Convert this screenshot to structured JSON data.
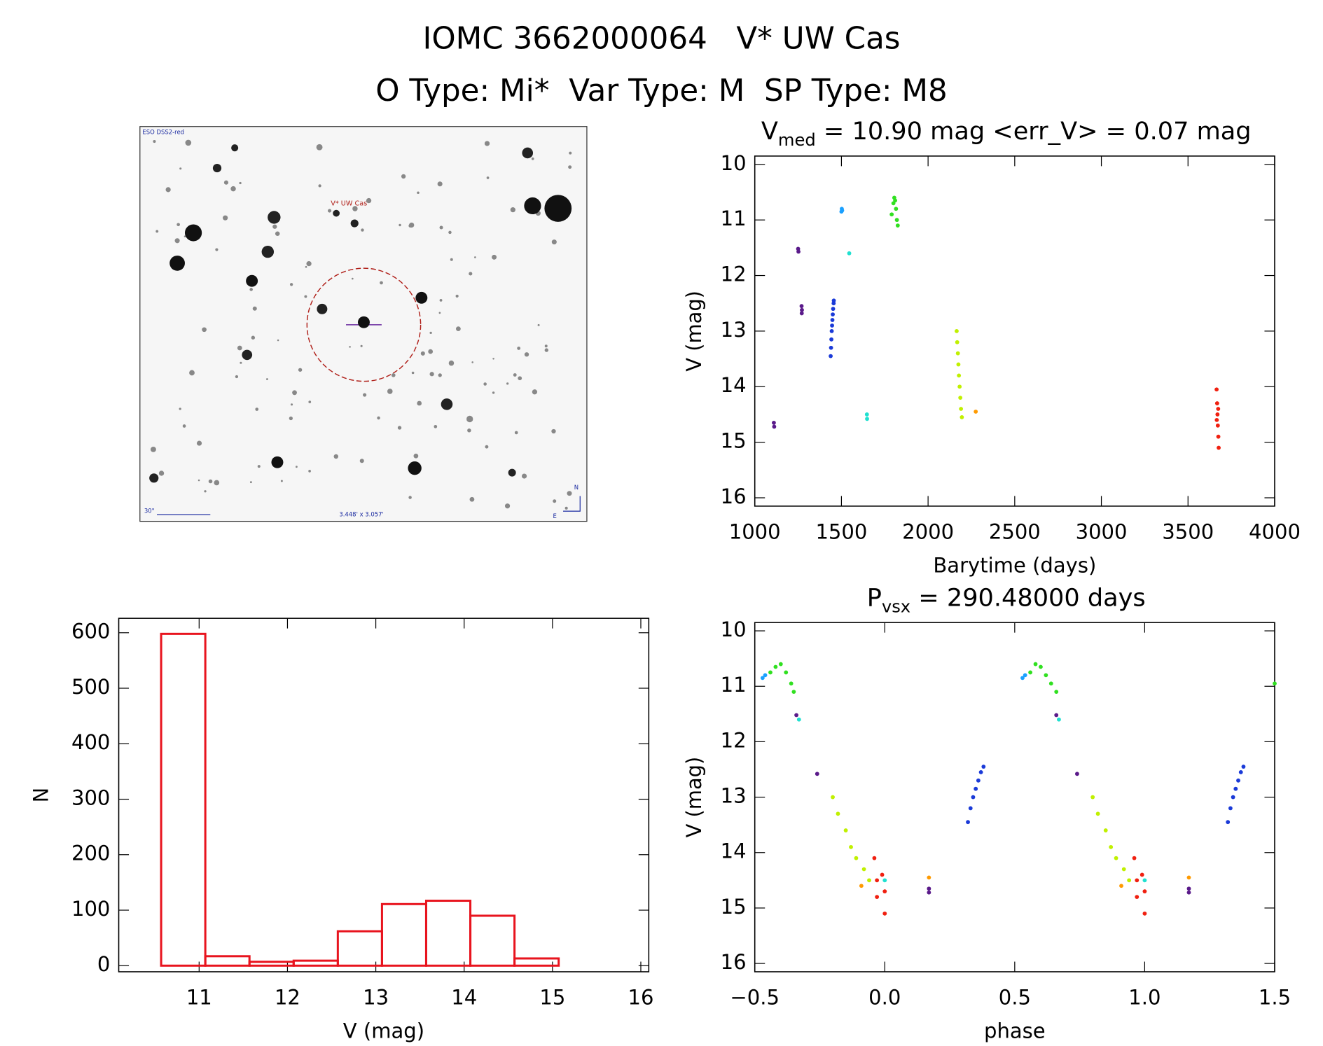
{
  "header": {
    "title": "IOMC 3662000064   V* UW Cas",
    "subtitle": "O Type: Mi*  Var Type: M  SP Type: M8"
  },
  "image": {
    "survey": "ESO DSS2-red",
    "target": "V* UW Cas",
    "scale": "30\"",
    "size": "3.448' x 3.057'",
    "north": "N",
    "east": "E"
  },
  "chart_data": [
    {
      "type": "histogram",
      "xlabel": "V (mag)",
      "ylabel": "N",
      "color": "#e8141e",
      "bins": [
        10.57,
        11.07,
        11.57,
        12.07,
        12.57,
        13.07,
        13.57,
        14.07,
        14.57,
        15.07
      ],
      "values": [
        598,
        17,
        7,
        9,
        62,
        111,
        117,
        90,
        13
      ],
      "xlim": [
        10.09,
        16.09
      ],
      "ylim": [
        -11,
        626
      ],
      "xticks": [
        11,
        12,
        13,
        14,
        15,
        16
      ],
      "yticks": [
        0,
        100,
        200,
        300,
        400,
        500,
        600
      ],
      "grid": false
    },
    {
      "type": "scatter",
      "title": {
        "text": "V",
        "subscript": "med",
        "after": " = 10.90 mag <err_V> = 0.07 mag"
      },
      "xlabel": "Barytime (days)",
      "ylabel": "V (mag)",
      "xlim": [
        1000,
        4000
      ],
      "ylim": [
        16.15,
        9.85
      ],
      "xticks": [
        1000,
        1500,
        2000,
        2500,
        3000,
        3500,
        4000
      ],
      "yticks": [
        10,
        11,
        12,
        13,
        14,
        15,
        16
      ],
      "grid": false,
      "series": [
        {
          "color": "#5a1a8a",
          "x": [
            1110,
            1112,
            1250,
            1252,
            1270,
            1272,
            1271
          ],
          "values": [
            14.65,
            14.72,
            11.52,
            11.57,
            12.55,
            12.62,
            12.68
          ]
        },
        {
          "color": "#1a3ad8",
          "x": [
            1438,
            1440,
            1442,
            1444,
            1446,
            1448,
            1450,
            1452,
            1455,
            1456
          ],
          "values": [
            13.45,
            13.3,
            13.15,
            13.0,
            12.9,
            12.8,
            12.7,
            12.6,
            12.5,
            12.45
          ]
        },
        {
          "color": "#1aa0ff",
          "x": [
            1500,
            1502,
            1504
          ],
          "values": [
            10.85,
            10.8,
            10.83
          ]
        },
        {
          "color": "#20e0d0",
          "x": [
            1545,
            1647,
            1648
          ],
          "values": [
            11.6,
            14.5,
            14.58
          ]
        },
        {
          "color": "#30e020",
          "x": [
            1790,
            1800,
            1805,
            1810,
            1815,
            1820,
            1825
          ],
          "values": [
            10.9,
            10.7,
            10.6,
            10.65,
            10.8,
            11.0,
            11.1
          ]
        },
        {
          "color": "#c0f000",
          "x": [
            2165,
            2168,
            2172,
            2175,
            2178,
            2182,
            2186,
            2190,
            2195
          ],
          "values": [
            13.0,
            13.2,
            13.4,
            13.6,
            13.8,
            14.0,
            14.2,
            14.4,
            14.55
          ]
        },
        {
          "color": "#ff9a00",
          "x": [
            2275
          ],
          "values": [
            14.45
          ]
        },
        {
          "color": "#f02010",
          "x": [
            3665,
            3668,
            3670,
            3672,
            3675,
            3677,
            3666,
            3674
          ],
          "values": [
            14.05,
            14.3,
            14.5,
            14.7,
            14.9,
            15.1,
            14.6,
            14.4
          ]
        }
      ]
    },
    {
      "type": "scatter",
      "title": {
        "text": "P",
        "subscript": "vsx",
        "after": " = 290.48000 days"
      },
      "xlabel": "phase",
      "ylabel": "V (mag)",
      "xlim": [
        -0.5,
        1.5
      ],
      "ylim": [
        16.15,
        9.85
      ],
      "xticks": [
        {
          "value": -0.5,
          "label": "−0.5"
        },
        {
          "value": 0,
          "label": "0.0"
        },
        0.5,
        {
          "value": 1,
          "label": "1.0"
        },
        1.5
      ],
      "yticks": [
        10,
        11,
        12,
        13,
        14,
        15,
        16
      ],
      "grid": false,
      "series": [
        {
          "color": "#1aa0ff",
          "x": [
            -0.47,
            -0.46,
            0.53,
            0.54
          ],
          "values": [
            10.85,
            10.8,
            10.85,
            10.8
          ]
        },
        {
          "color": "#30e020",
          "x": [
            -0.44,
            -0.42,
            -0.4,
            -0.38,
            -0.36,
            -0.35,
            0.56,
            0.58,
            0.6,
            0.62,
            0.64,
            0.66,
            1.5
          ],
          "values": [
            10.75,
            10.65,
            10.6,
            10.75,
            10.95,
            11.1,
            10.75,
            10.6,
            10.65,
            10.8,
            10.95,
            11.1,
            10.95
          ]
        },
        {
          "color": "#5a1a8a",
          "x": [
            -0.34,
            0.66,
            -0.26,
            0.74,
            0.17,
            0.17,
            1.17,
            1.17
          ],
          "values": [
            11.52,
            11.52,
            12.58,
            12.58,
            14.65,
            14.72,
            14.65,
            14.72
          ]
        },
        {
          "color": "#20e0d0",
          "x": [
            -0.33,
            0.67,
            0.0,
            1.0
          ],
          "values": [
            11.6,
            11.6,
            14.5,
            14.5
          ]
        },
        {
          "color": "#c0f000",
          "x": [
            -0.2,
            -0.18,
            -0.15,
            -0.13,
            -0.11,
            -0.08,
            -0.06,
            0.8,
            0.82,
            0.85,
            0.87,
            0.89,
            0.92,
            0.94
          ],
          "values": [
            13.0,
            13.3,
            13.6,
            13.9,
            14.1,
            14.3,
            14.5,
            13.0,
            13.3,
            13.6,
            13.9,
            14.1,
            14.3,
            14.5
          ]
        },
        {
          "color": "#1a3ad8",
          "x": [
            0.32,
            0.33,
            0.34,
            0.35,
            0.36,
            0.37,
            0.38,
            1.32,
            1.33,
            1.34,
            1.35,
            1.36,
            1.37,
            1.38
          ],
          "values": [
            13.45,
            13.2,
            13.0,
            12.85,
            12.7,
            12.55,
            12.45,
            13.45,
            13.2,
            13.0,
            12.85,
            12.7,
            12.55,
            12.45
          ]
        },
        {
          "color": "#ff9a00",
          "x": [
            0.17,
            1.17,
            -0.09,
            0.91
          ],
          "values": [
            14.45,
            14.45,
            14.6,
            14.6
          ]
        },
        {
          "color": "#f02010",
          "x": [
            -0.04,
            -0.03,
            -0.01,
            0.0,
            0.0,
            -0.03,
            0.96,
            0.97,
            0.99,
            1.0,
            1.0,
            0.97
          ],
          "values": [
            14.1,
            14.5,
            14.4,
            14.7,
            15.1,
            14.8,
            14.1,
            14.5,
            14.4,
            14.7,
            15.1,
            14.8
          ]
        }
      ]
    }
  ]
}
